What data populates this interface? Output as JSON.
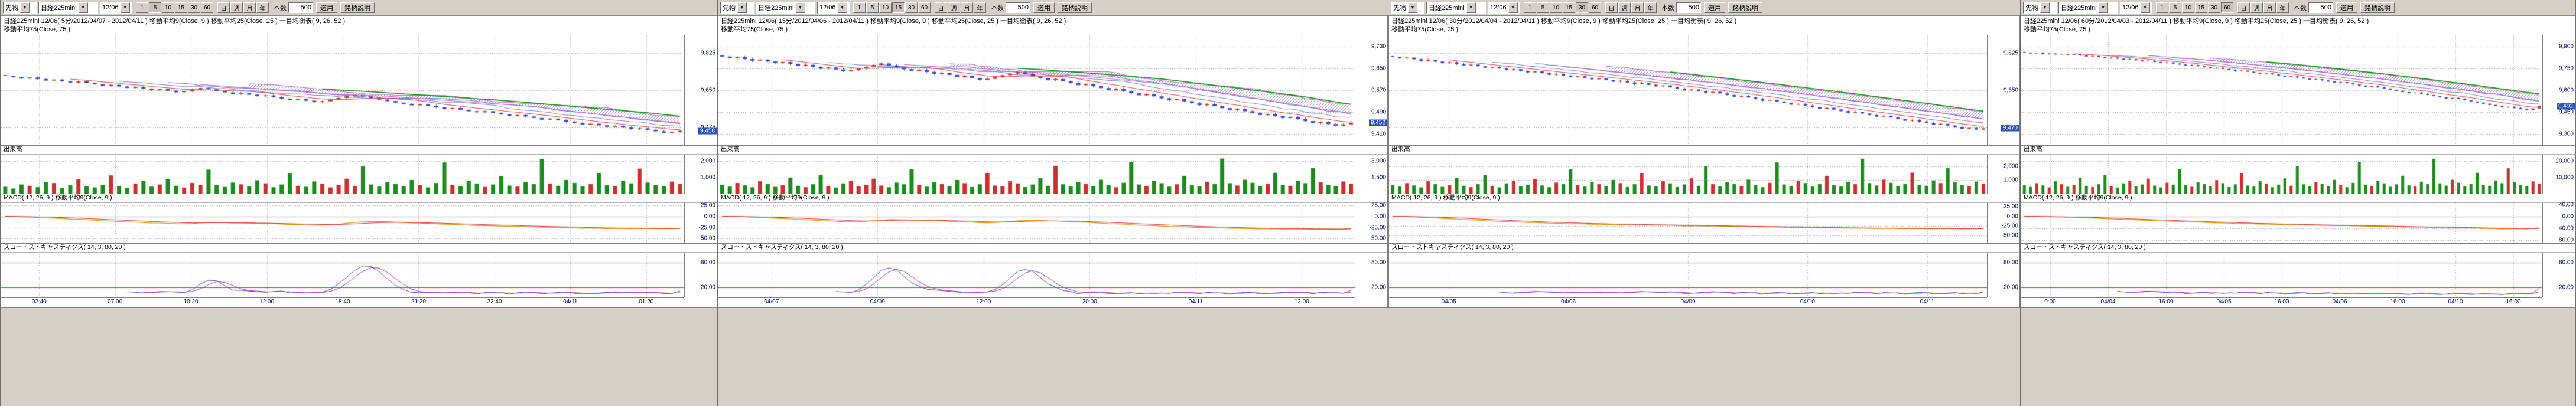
{
  "colors": {
    "candle_up": "#cc2f2f",
    "candle_down": "#3a49c8",
    "volume_up": "#cc2f2f",
    "volume_down": "#1d8a1d",
    "ma_fast": "#e04040",
    "ma_mid": "#c85ac8",
    "ma_slow": "#108a10",
    "cloud_hatch": "#8a8ad0",
    "cloud_edge_a": "#6a6ac0",
    "cloud_edge_b": "#b06ab0",
    "kijun": "#7a7ad0",
    "macd_line": "#e08a00",
    "macd_signal": "#d23030",
    "stoch_k": "#3a49c8",
    "stoch_d": "#a034a0",
    "stoch_limit": "#d23030",
    "grid": "#999999",
    "grid_vertical": "#aaaaaa",
    "badge_bg": "#2a52be"
  },
  "panels": [
    {
      "toolbar": {
        "market": "先物",
        "symbol": "日経225mini",
        "contract": "12/06",
        "intervals": [
          "1",
          "5",
          "10",
          "15",
          "30",
          "60"
        ],
        "active_interval": "5",
        "periods": [
          "日",
          "週",
          "月",
          "年"
        ],
        "bars_label": "本数",
        "bars_value": "500",
        "apply": "適用",
        "info": "銘柄説明"
      },
      "title_line1": "日経225mini 12/06( 5分/2012/04/07 - 2012/04/11 )  移動平均9(Close, 9 )  移動平均25(Close, 25 )  一目均衡表( 9, 26, 52 )",
      "title_line2": "移動平均75(Close, 75 )",
      "labels": {
        "volume": "出来高",
        "macd": "MACD( 12, 26, 9 )   移動平均9(Close, 9 )",
        "stoch": "スロー・ストキャスティクス( 14, 3, 80, 20 )"
      }
    },
    {
      "toolbar": {
        "market": "先物",
        "symbol": "日経225mini",
        "contract": "12/06",
        "intervals": [
          "1",
          "5",
          "10",
          "15",
          "30",
          "60"
        ],
        "active_interval": "15",
        "periods": [
          "日",
          "週",
          "月",
          "年"
        ],
        "bars_label": "本数",
        "bars_value": "500",
        "apply": "適用",
        "info": "銘柄説明"
      },
      "title_line1": "日経225mini 12/06( 15分/2012/04/06 - 2012/04/11 )  移動平均9(Close, 9 )  移動平均25(Close, 25 )  一目均衡表( 9, 26, 52 )",
      "title_line2": "移動平均75(Close, 75 )",
      "labels": {
        "volume": "出来高",
        "macd": "MACD( 12, 26, 9 )   移動平均9(Close, 9 )",
        "stoch": "スロー・ストキャスティクス( 14, 3, 80, 20 )"
      }
    },
    {
      "toolbar": {
        "market": "先物",
        "symbol": "日経225mini",
        "contract": "12/06",
        "intervals": [
          "1",
          "5",
          "10",
          "15",
          "30",
          "60"
        ],
        "active_interval": "30",
        "periods": [
          "日",
          "週",
          "月",
          "年"
        ],
        "bars_label": "本数",
        "bars_value": "500",
        "apply": "適用",
        "info": "銘柄説明"
      },
      "title_line1": "日経225mini 12/06( 30分/2012/04/04 - 2012/04/11 )  移動平均9(Close, 9 )  移動平均25(Close, 25 )  一目均衡表( 9, 26, 52 )",
      "title_line2": "移動平均75(Close, 75 )",
      "labels": {
        "volume": "出来高",
        "macd": "MACD( 12, 26, 9 )   移動平均9(Close, 9 )",
        "stoch": "スロー・ストキャスティクス( 14, 3, 80, 20 )"
      }
    },
    {
      "toolbar": {
        "market": "先物",
        "symbol": "日経225mini",
        "contract": "12/06",
        "intervals": [
          "1",
          "5",
          "10",
          "15",
          "30",
          "60"
        ],
        "active_interval": "60",
        "periods": [
          "日",
          "週",
          "月",
          "年"
        ],
        "bars_label": "本数",
        "bars_value": "500",
        "apply": "適用",
        "info": "銘柄説明"
      },
      "title_line1": "日経225mini 12/06( 60分/2012/04/03 - 2012/04/11 )  移動平均9(Close, 9 )  移動平均25(Close, 25 )  一目均衡表( 9, 26, 52 )",
      "title_line2": "移動平均75(Close, 75 )",
      "labels": {
        "volume": "出来高",
        "macd": "MACD( 12, 26, 9 )   移動平均9(Close, 9 )",
        "stoch": "スロー・ストキャスティクス( 14, 3, 80, 20 )"
      }
    }
  ],
  "chart_data": [
    {
      "type": "candlestick",
      "interval": "5分",
      "x_labels": [
        "02:40",
        "07:00",
        "10:20",
        "12:00",
        "18:40",
        "21:20",
        "22:40",
        "04/11",
        "01:20"
      ],
      "main": {
        "ylim": [
          9390,
          9910
        ],
        "ticks": [
          {
            "v": 9825,
            "t": "9,825"
          },
          {
            "v": 9650,
            "t": "9,650"
          },
          {
            "v": 9475,
            "t": "9,475"
          }
        ]
      },
      "volume": {
        "ylim": [
          0,
          2400
        ],
        "ticks": [
          {
            "v": 2000,
            "t": "2,000"
          },
          {
            "v": 1000,
            "t": "1,000"
          }
        ]
      },
      "macd": {
        "ylim": [
          -60,
          30
        ],
        "ticks": [
          {
            "v": 25,
            "t": "25.00"
          },
          {
            "v": 0,
            "t": "0.00"
          },
          {
            "v": -25,
            "t": "-25.00"
          },
          {
            "v": -50,
            "t": "-50.00"
          }
        ]
      },
      "stoch": {
        "ylim": [
          -5,
          105
        ],
        "ticks": [
          {
            "v": 80,
            "t": "80.00"
          },
          {
            "v": 20,
            "t": "20.00"
          }
        ]
      },
      "closes": [
        9718,
        9712,
        9706,
        9711,
        9703,
        9696,
        9701,
        9693,
        9687,
        9692,
        9684,
        9678,
        9671,
        9676,
        9668,
        9661,
        9666,
        9658,
        9651,
        9656,
        9648,
        9641,
        9646,
        9653,
        9661,
        9655,
        9647,
        9640,
        9633,
        9637,
        9629,
        9622,
        9626,
        9618,
        9611,
        9604,
        9609,
        9601,
        9594,
        9598,
        9606,
        9614,
        9622,
        9628,
        9621,
        9613,
        9606,
        9599,
        9592,
        9586,
        9579,
        9583,
        9576,
        9569,
        9561,
        9566,
        9558,
        9551,
        9546,
        9551,
        9543,
        9536,
        9529,
        9533,
        9526,
        9519,
        9511,
        9516,
        9509,
        9501,
        9494,
        9488,
        9492,
        9484,
        9477,
        9481,
        9473,
        9466,
        9470,
        9463,
        9456,
        9449,
        9453,
        9458
      ],
      "volumes": [
        420,
        310,
        560,
        480,
        390,
        720,
        650,
        340,
        510,
        880,
        460,
        380,
        540,
        1120,
        470,
        350,
        620,
        780,
        430,
        560,
        910,
        480,
        370,
        660,
        540,
        1480,
        520,
        410,
        680,
        570,
        440,
        820,
        630,
        390,
        560,
        1240,
        480,
        420,
        750,
        610,
        380,
        540,
        920,
        470,
        1680,
        560,
        430,
        710,
        590,
        460,
        840,
        520,
        380,
        650,
        1920,
        540,
        460,
        780,
        620,
        410,
        560,
        1080,
        490,
        430,
        720,
        580,
        2140,
        620,
        480,
        840,
        660,
        440,
        580,
        1260,
        520,
        470,
        790,
        630,
        1540,
        680,
        520,
        460,
        740,
        600
      ]
    },
    {
      "type": "candlestick",
      "interval": "15分",
      "x_labels": [
        "04/07",
        "04/09",
        "12:00",
        "20:00",
        "04/11",
        "12:00"
      ],
      "main": {
        "ylim": [
          9370,
          9770
        ],
        "ticks": [
          {
            "v": 9730,
            "t": "9,730"
          },
          {
            "v": 9650,
            "t": "9,650"
          },
          {
            "v": 9570,
            "t": "9,570"
          },
          {
            "v": 9490,
            "t": "9,490"
          },
          {
            "v": 9410,
            "t": "9,410"
          }
        ]
      },
      "volume": {
        "ylim": [
          0,
          3600
        ],
        "ticks": [
          {
            "v": 3000,
            "t": "3,000"
          },
          {
            "v": 1500,
            "t": "1,500"
          }
        ]
      },
      "macd": {
        "ylim": [
          -60,
          30
        ],
        "ticks": [
          {
            "v": 25,
            "t": "25.00"
          },
          {
            "v": 0,
            "t": "0.00"
          },
          {
            "v": -25,
            "t": "-25.00"
          },
          {
            "v": -50,
            "t": "-50.00"
          }
        ]
      },
      "stoch": {
        "ylim": [
          -5,
          105
        ],
        "ticks": [
          {
            "v": 80,
            "t": "80.00"
          },
          {
            "v": 20,
            "t": "20.00"
          }
        ]
      },
      "closes": [
        9693,
        9687,
        9691,
        9684,
        9678,
        9682,
        9675,
        9669,
        9673,
        9666,
        9659,
        9663,
        9656,
        9649,
        9653,
        9646,
        9639,
        9643,
        9649,
        9656,
        9662,
        9668,
        9661,
        9654,
        9647,
        9641,
        9645,
        9637,
        9630,
        9634,
        9626,
        9619,
        9623,
        9615,
        9608,
        9612,
        9618,
        9625,
        9631,
        9637,
        9629,
        9621,
        9614,
        9607,
        9611,
        9603,
        9596,
        9589,
        9593,
        9585,
        9578,
        9571,
        9575,
        9567,
        9559,
        9552,
        9556,
        9548,
        9541,
        9534,
        9538,
        9530,
        9523,
        9516,
        9520,
        9512,
        9505,
        9498,
        9502,
        9494,
        9487,
        9480,
        9484,
        9476,
        9469,
        9473,
        9465,
        9458,
        9451,
        9455,
        9447,
        9441,
        9446,
        9452
      ],
      "volumes": [
        820,
        640,
        980,
        760,
        580,
        1140,
        890,
        620,
        760,
        1480,
        720,
        590,
        860,
        1720,
        700,
        560,
        940,
        1180,
        660,
        820,
        1380,
        740,
        580,
        1020,
        860,
        2240,
        800,
        640,
        1060,
        880,
        680,
        1260,
        960,
        600,
        860,
        1900,
        740,
        660,
        1140,
        940,
        600,
        840,
        1420,
        720,
        2560,
        860,
        660,
        1080,
        900,
        700,
        1280,
        800,
        580,
        1000,
        2920,
        840,
        700,
        1180,
        960,
        640,
        860,
        1640,
        760,
        660,
        1100,
        880,
        3240,
        960,
        740,
        1280,
        1000,
        680,
        900,
        1920,
        800,
        720,
        1200,
        960,
        2360,
        1040,
        800,
        700,
        1120,
        920
      ]
    },
    {
      "type": "candlestick",
      "interval": "30分",
      "x_labels": [
        "04/05",
        "04/06",
        "04/09",
        "04/10",
        "04/11"
      ],
      "main": {
        "ylim": [
          9390,
          9910
        ],
        "ticks": [
          {
            "v": 9825,
            "t": "9,825"
          },
          {
            "v": 9650,
            "t": "9,650"
          },
          {
            "v": 9475,
            "t": "9,475"
          }
        ]
      },
      "volume": {
        "ylim": [
          0,
          2900
        ],
        "ticks": [
          {
            "v": 2000,
            "t": "2,000"
          },
          {
            "v": 1000,
            "t": "1,000"
          }
        ]
      },
      "macd": {
        "ylim": [
          -70,
          35
        ],
        "ticks": [
          {
            "v": 25,
            "t": "25.00"
          },
          {
            "v": 0,
            "t": "0.00"
          },
          {
            "v": -25,
            "t": "-25.00"
          },
          {
            "v": -50,
            "t": "-50.00"
          }
        ]
      },
      "stoch": {
        "ylim": [
          -5,
          105
        ],
        "ticks": [
          {
            "v": 80,
            "t": "80.00"
          },
          {
            "v": 20,
            "t": "20.00"
          }
        ]
      },
      "closes": [
        9808,
        9801,
        9805,
        9797,
        9790,
        9794,
        9786,
        9779,
        9783,
        9775,
        9768,
        9772,
        9764,
        9757,
        9761,
        9753,
        9746,
        9750,
        9742,
        9735,
        9739,
        9731,
        9724,
        9728,
        9720,
        9713,
        9717,
        9709,
        9702,
        9706,
        9698,
        9691,
        9695,
        9687,
        9680,
        9684,
        9676,
        9669,
        9673,
        9665,
        9658,
        9650,
        9654,
        9646,
        9639,
        9643,
        9635,
        9628,
        9620,
        9624,
        9616,
        9609,
        9601,
        9605,
        9597,
        9590,
        9582,
        9586,
        9578,
        9571,
        9563,
        9567,
        9559,
        9552,
        9544,
        9548,
        9540,
        9533,
        9525,
        9529,
        9521,
        9514,
        9506,
        9510,
        9502,
        9495,
        9487,
        9491,
        9483,
        9476,
        9468,
        9472,
        9464,
        9470
      ],
      "volumes": [
        640,
        520,
        780,
        600,
        460,
        920,
        700,
        500,
        620,
        1180,
        580,
        480,
        700,
        1380,
        560,
        460,
        760,
        940,
        540,
        660,
        1100,
        600,
        470,
        820,
        700,
        1800,
        640,
        520,
        860,
        700,
        560,
        1020,
        780,
        490,
        700,
        1520,
        600,
        530,
        920,
        760,
        490,
        680,
        1140,
        580,
        2040,
        700,
        530,
        860,
        720,
        560,
        1040,
        640,
        470,
        800,
        2320,
        680,
        560,
        940,
        780,
        520,
        700,
        1320,
        620,
        530,
        880,
        700,
        2600,
        780,
        600,
        1040,
        800,
        560,
        720,
        1560,
        640,
        580,
        960,
        780,
        1900,
        840,
        640,
        560,
        900,
        740
      ]
    },
    {
      "type": "candlestick",
      "interval": "60分",
      "x_labels": [
        "0:00",
        "04/04",
        "16:00",
        "04/05",
        "16:00",
        "04/06",
        "16:00",
        "04/10",
        "16:00"
      ],
      "main": {
        "ylim": [
          9225,
          9975
        ],
        "ticks": [
          {
            "v": 9900,
            "t": "9,900"
          },
          {
            "v": 9750,
            "t": "9,750"
          },
          {
            "v": 9600,
            "t": "9,600"
          },
          {
            "v": 9450,
            "t": "9,450"
          },
          {
            "v": 9300,
            "t": "9,300"
          }
        ]
      },
      "volume": {
        "ylim": [
          0,
          24000
        ],
        "ticks": [
          {
            "v": 20000,
            "t": "20,000"
          },
          {
            "v": 10000,
            "t": "10,000"
          }
        ]
      },
      "macd": {
        "ylim": [
          -90,
          45
        ],
        "ticks": [
          {
            "v": 40,
            "t": "40.00"
          },
          {
            "v": 0,
            "t": "0.00"
          },
          {
            "v": -40,
            "t": "-40.00"
          },
          {
            "v": -80,
            "t": "-80.00"
          }
        ]
      },
      "stoch": {
        "ylim": [
          -5,
          105
        ],
        "ticks": [
          {
            "v": 80,
            "t": "80.00"
          },
          {
            "v": 20,
            "t": "20.00"
          }
        ]
      },
      "closes": [
        9858,
        9852,
        9856,
        9848,
        9852,
        9845,
        9849,
        9842,
        9846,
        9838,
        9831,
        9835,
        9827,
        9820,
        9824,
        9816,
        9809,
        9813,
        9805,
        9798,
        9802,
        9794,
        9787,
        9791,
        9783,
        9776,
        9769,
        9773,
        9765,
        9758,
        9750,
        9754,
        9746,
        9739,
        9731,
        9735,
        9727,
        9720,
        9712,
        9716,
        9708,
        9700,
        9692,
        9696,
        9688,
        9680,
        9672,
        9676,
        9668,
        9660,
        9652,
        9656,
        9648,
        9640,
        9632,
        9624,
        9628,
        9620,
        9612,
        9604,
        9596,
        9588,
        9580,
        9584,
        9576,
        9568,
        9560,
        9552,
        9544,
        9548,
        9540,
        9532,
        9524,
        9516,
        9508,
        9500,
        9492,
        9484,
        9488,
        9480,
        9472,
        9464,
        9476,
        9492
      ],
      "volumes": [
        5200,
        4100,
        6400,
        5000,
        3800,
        7600,
        5800,
        4200,
        5200,
        9800,
        4800,
        4000,
        5800,
        11400,
        4700,
        3700,
        6300,
        7800,
        4400,
        5600,
        9200,
        4900,
        3800,
        6700,
        5500,
        15000,
        5300,
        4200,
        6900,
        5800,
        4500,
        8300,
        6400,
        4000,
        5700,
        12600,
        4900,
        4300,
        7600,
        6200,
        3900,
        5500,
        9400,
        4800,
        17000,
        5700,
        4400,
        7200,
        6000,
        4700,
        8500,
        5300,
        3900,
        6600,
        19500,
        5500,
        4700,
        7900,
        6300,
        4200,
        5700,
        11000,
        5000,
        4400,
        7300,
        5900,
        21500,
        6300,
        4900,
        8500,
        6700,
        4500,
        5900,
        12800,
        5300,
        4800,
        8000,
        6400,
        15600,
        6900,
        5300,
        4700,
        7500,
        6100
      ]
    }
  ]
}
